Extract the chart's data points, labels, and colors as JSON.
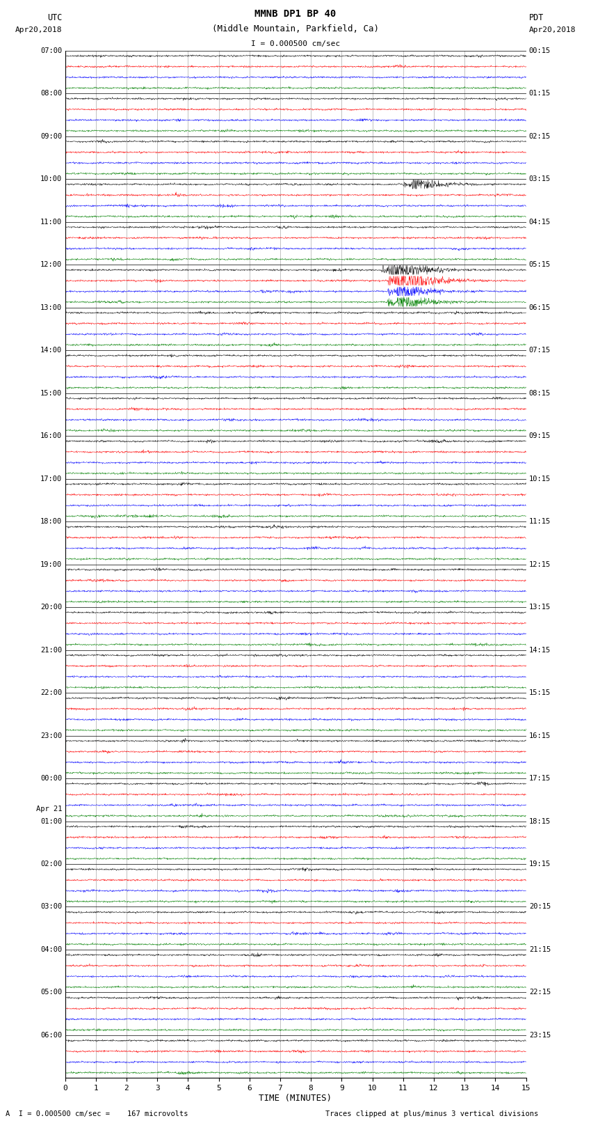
{
  "title_line1": "MMNB DP1 BP 40",
  "title_line2": "(Middle Mountain, Parkfield, Ca)",
  "scale_label": "I = 0.000500 cm/sec",
  "left_label": "UTC",
  "right_label": "PDT",
  "left_date": "Apr20,2018",
  "right_date": "Apr20,2018",
  "bottom_label1": "A  I = 0.000500 cm/sec =    167 microvolts",
  "bottom_label2": "Traces clipped at plus/minus 3 vertical divisions",
  "xlabel": "TIME (MINUTES)",
  "colors": [
    "black",
    "red",
    "blue",
    "green"
  ],
  "n_minutes": 15,
  "total_groups": 24,
  "traces_per_group": 4,
  "utc_hours": [
    7,
    8,
    9,
    10,
    11,
    12,
    13,
    14,
    15,
    16,
    17,
    18,
    19,
    20,
    21,
    22,
    23,
    0,
    1,
    2,
    3,
    4,
    5,
    6
  ],
  "pdt_hours": [
    0,
    1,
    2,
    3,
    4,
    5,
    6,
    7,
    8,
    9,
    10,
    11,
    12,
    13,
    14,
    15,
    16,
    17,
    18,
    19,
    20,
    21,
    22,
    23
  ],
  "big_event_group": 5,
  "moderate_event_group": 3,
  "midnight_group": 17,
  "background_color": "#ffffff",
  "grid_color": "#aaaaaa",
  "fig_width": 8.5,
  "fig_height": 16.13
}
